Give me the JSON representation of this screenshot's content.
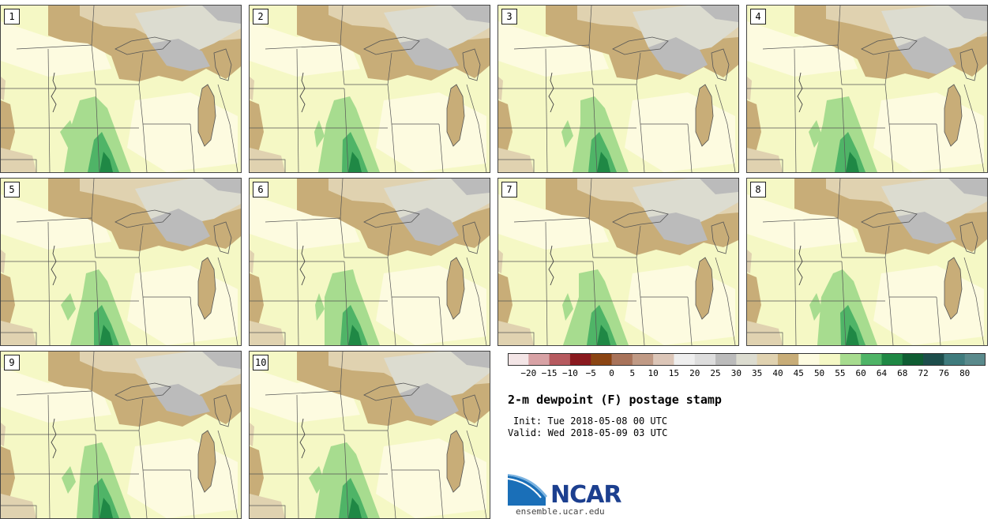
{
  "panels": [
    "1",
    "2",
    "3",
    "4",
    "5",
    "6",
    "7",
    "8",
    "9",
    "10"
  ],
  "colorbar": {
    "ticks": [
      "−20",
      "−15",
      "−10",
      "−5",
      "0",
      "5",
      "10",
      "15",
      "20",
      "25",
      "30",
      "35",
      "40",
      "45",
      "50",
      "55",
      "60",
      "64",
      "68",
      "72",
      "76",
      "80"
    ],
    "colors": [
      "#f3e5e6",
      "#d8a2a5",
      "#b65a5f",
      "#8a1a1f",
      "#8b4513",
      "#a8735a",
      "#c09a85",
      "#dcc6b8",
      "#eeeeee",
      "#dddddd",
      "#bbbbbb",
      "#dcdcd0",
      "#e0d2b0",
      "#c8ad78",
      "#fdfbe0",
      "#f5f8c5",
      "#a7dc8f",
      "#4fb467",
      "#1f8845",
      "#0f5d33",
      "#1d4e4c",
      "#3f7b7d",
      "#5a8a8c"
    ]
  },
  "title": "2-m dewpoint (F) postage stamp",
  "init": "Init: Tue 2018-05-08 00 UTC",
  "valid": "Valid: Wed 2018-05-09 03 UTC",
  "logo_text": "NCAR",
  "site": "ensemble.ucar.edu"
}
